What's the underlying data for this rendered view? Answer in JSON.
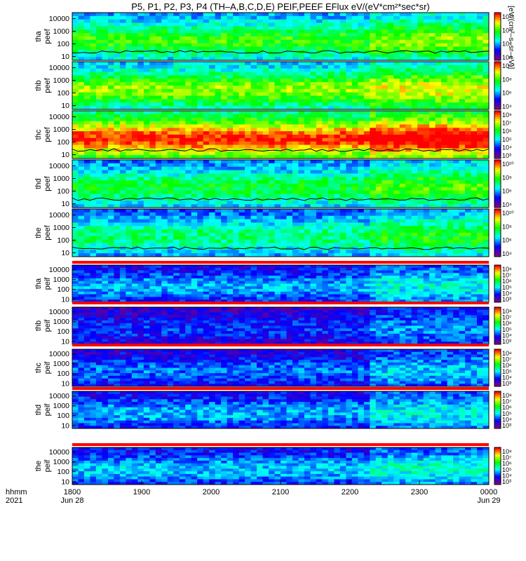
{
  "title": "P5, P1, P2, P3, P4 (TH–A,B,C,D,E) PEIF,PEEF EFlux eV/(eV*cm²*sec*sr)",
  "colorbar_title": "[eV/(cm²–s–sr–eV)]",
  "time_axis": {
    "row1_label": "hhmm",
    "row2_label": "2021",
    "ticks": [
      "1800",
      "1900",
      "2000",
      "2100",
      "2200",
      "2300",
      "0000"
    ],
    "date_start": "Jun 28",
    "date_end": "Jun 29"
  },
  "colors": {
    "scale": [
      "#800080",
      "#0000ff",
      "#00ffff",
      "#00ff00",
      "#ffff00",
      "#ff0000"
    ],
    "flag_red": "#ff0000",
    "flag_yellow": "#ffff00"
  },
  "chart_data": [
    {
      "type": "heatmap",
      "probe": "tha",
      "product": "peef",
      "label_top": "tha",
      "label_bottom": "peef",
      "ytick_labels": [
        "10000",
        "1000",
        "100",
        "10"
      ],
      "ylim": [
        5,
        30000
      ],
      "yscale": "log",
      "colorbar": [
        "10¹⁰",
        "10⁸",
        "10⁶",
        "10⁴"
      ],
      "background_level": 0.55,
      "has_potential_line": true
    },
    {
      "type": "heatmap",
      "probe": "thb",
      "product": "peef",
      "label_top": "thb",
      "label_bottom": "peef",
      "ytick_labels": [
        "10000",
        "1000",
        "100",
        "10"
      ],
      "ylim": [
        5,
        30000
      ],
      "yscale": "log",
      "colorbar": [
        "10¹⁰",
        "10⁸",
        "10⁶",
        "10⁴"
      ],
      "background_level": 0.62,
      "has_potential_line": false
    },
    {
      "type": "heatmap",
      "probe": "thc",
      "product": "peef",
      "label_top": "thc",
      "label_bottom": "peef",
      "ytick_labels": [
        "10000",
        "1000",
        "100",
        "10"
      ],
      "ylim": [
        5,
        30000
      ],
      "yscale": "log",
      "colorbar": [
        "10⁸",
        "10⁷",
        "10⁶",
        "10⁵",
        "10⁴",
        "10³"
      ],
      "background_level": 0.85,
      "has_potential_line": true
    },
    {
      "type": "heatmap",
      "probe": "thd",
      "product": "peef",
      "label_top": "thd",
      "label_bottom": "peef",
      "ytick_labels": [
        "10000",
        "1000",
        "100",
        "10"
      ],
      "ylim": [
        5,
        30000
      ],
      "yscale": "log",
      "colorbar": [
        "10¹⁰",
        "10⁸",
        "10⁶",
        "10⁴"
      ],
      "background_level": 0.5,
      "has_potential_line": true
    },
    {
      "type": "heatmap",
      "probe": "the",
      "product": "peef",
      "label_top": "the",
      "label_bottom": "peef",
      "ytick_labels": [
        "10000",
        "1000",
        "100",
        "10"
      ],
      "ylim": [
        5,
        30000
      ],
      "yscale": "log",
      "colorbar": [
        "10¹⁰",
        "10⁸",
        "10⁶",
        "10⁴"
      ],
      "background_level": 0.45,
      "has_potential_line": true
    },
    {
      "type": "heatmap",
      "probe": "tha",
      "product": "peif",
      "label_top": "tha",
      "label_bottom": "peif",
      "ytick_labels": [
        "10000",
        "1000",
        "100",
        "10"
      ],
      "ylim": [
        5,
        30000
      ],
      "yscale": "log",
      "colorbar": [
        "10⁸",
        "10⁷",
        "10⁶",
        "10⁵",
        "10⁴",
        "10³"
      ],
      "background_level": 0.3,
      "has_potential_line": false
    },
    {
      "type": "heatmap",
      "probe": "thb",
      "product": "peif",
      "label_top": "thb",
      "label_bottom": "peif",
      "ytick_labels": [
        "10000",
        "1000",
        "100",
        "10"
      ],
      "ylim": [
        5,
        30000
      ],
      "yscale": "log",
      "colorbar": [
        "10⁸",
        "10⁷",
        "10⁶",
        "10⁵",
        "10⁴",
        "10³"
      ],
      "background_level": 0.2,
      "has_potential_line": false
    },
    {
      "type": "heatmap",
      "probe": "thc",
      "product": "peif",
      "label_top": "thc",
      "label_bottom": "peif",
      "ytick_labels": [
        "10000",
        "1000",
        "100",
        "10"
      ],
      "ylim": [
        5,
        30000
      ],
      "yscale": "log",
      "colorbar": [
        "10⁸",
        "10⁷",
        "10⁶",
        "10⁵",
        "10⁴",
        "10³"
      ],
      "background_level": 0.25,
      "has_potential_line": false
    },
    {
      "type": "heatmap",
      "probe": "thd",
      "product": "peif",
      "label_top": "thd",
      "label_bottom": "peif",
      "ytick_labels": [
        "10000",
        "1000",
        "100",
        "10"
      ],
      "ylim": [
        5,
        30000
      ],
      "yscale": "log",
      "colorbar": [
        "10⁸",
        "10⁷",
        "10⁶",
        "10⁵",
        "10⁴",
        "10³"
      ],
      "background_level": 0.3,
      "has_potential_line": false
    },
    {
      "type": "heatmap",
      "probe": "the",
      "product": "peif",
      "label_top": "the",
      "label_bottom": "peif",
      "ytick_labels": [
        "10000",
        "1000",
        "100",
        "10"
      ],
      "ylim": [
        5,
        30000
      ],
      "yscale": "log",
      "colorbar": [
        "10⁸",
        "10⁷",
        "10⁶",
        "10⁵",
        "10⁴",
        "10³"
      ],
      "background_level": 0.32,
      "has_potential_line": false
    }
  ]
}
